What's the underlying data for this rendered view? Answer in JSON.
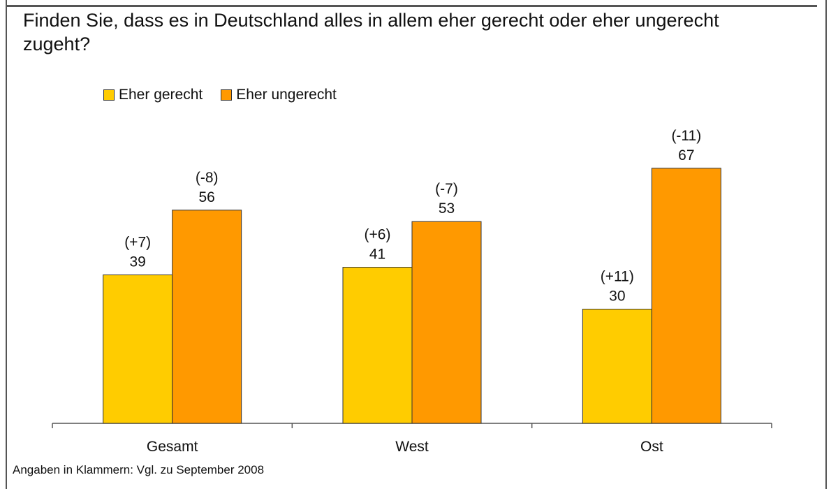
{
  "title": "Finden Sie, dass es in Deutschland alles in allem eher gerecht oder eher ungerecht zugeht?",
  "footnote": "Angaben in Klammern: Vgl. zu September 2008",
  "chart_data": {
    "type": "bar",
    "title": "Finden Sie, dass es in Deutschland alles in allem eher gerecht oder eher ungerecht zugeht?",
    "categories": [
      "Gesamt",
      "West",
      "Ost"
    ],
    "series": [
      {
        "name": "Eher gerecht",
        "color": "#FFCC00",
        "values": [
          39,
          41,
          30
        ],
        "changes": [
          "(+7)",
          "(+6)",
          "(+11)"
        ]
      },
      {
        "name": "Eher ungerecht",
        "color": "#FF9900",
        "values": [
          56,
          53,
          67
        ],
        "changes": [
          "(-8)",
          "(-7)",
          "(-11)"
        ]
      }
    ],
    "ylim": [
      0,
      75
    ],
    "grid": false,
    "legend": "top-left"
  }
}
